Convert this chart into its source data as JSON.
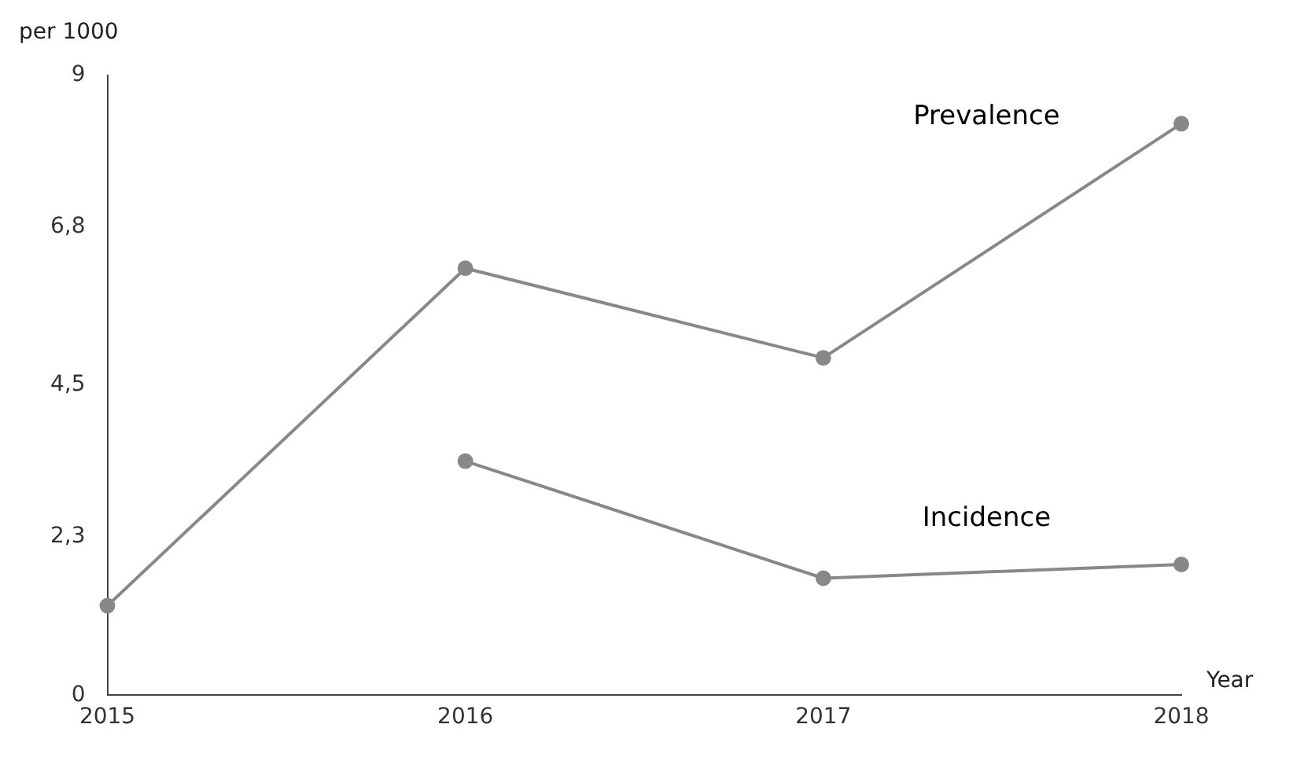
{
  "chart_data": {
    "type": "line",
    "xlabel": "Year",
    "ylabel": "per 1000",
    "categories": [
      "2015",
      "2016",
      "2017",
      "2018"
    ],
    "series": [
      {
        "name": "Prevalence",
        "color": "#888888",
        "values": [
          1.3,
          6.2,
          4.9,
          8.3
        ]
      },
      {
        "name": "Incidence",
        "color": "#888888",
        "values": [
          null,
          3.4,
          1.7,
          1.9
        ]
      }
    ],
    "ylim": [
      0,
      9
    ],
    "yticks": [
      0,
      {
        "value": 2.3,
        "label": "2,3"
      },
      {
        "value": 4.5,
        "label": "4,5"
      },
      {
        "value": 6.8,
        "label": "6,8"
      },
      9
    ],
    "grid": false,
    "legend": false,
    "marker": "circle",
    "line_style": "solid"
  }
}
